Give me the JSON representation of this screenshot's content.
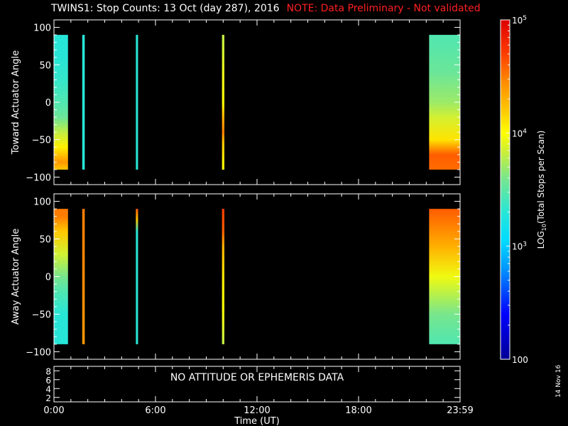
{
  "header": {
    "title": "TWINS1: Stop Counts: 13 Oct (day 287), 2016",
    "note": "NOTE: Data Preliminary - Not validated",
    "note_color": "#ff2020"
  },
  "side_date": "14 Nov 16",
  "no_data_message": "NO ATTITUDE OR EPHEMERIS DATA",
  "chart_data": [
    {
      "type": "heatmap",
      "panel": "toward",
      "ylabel": "Toward Actuator Angle",
      "ylim": [
        -110,
        110
      ],
      "yticks": [
        -100,
        -50,
        0,
        50,
        100
      ],
      "xlim_hours": [
        0,
        24
      ],
      "angle_range": [
        -90,
        90
      ],
      "segments": [
        {
          "start": "0:00",
          "end": "0:50",
          "start_h": 0.0,
          "end_h": 0.83,
          "log_profile": [
            [
              -90,
              4.2
            ],
            [
              -80,
              4.4
            ],
            [
              -60,
              4.05
            ],
            [
              -40,
              3.8
            ],
            [
              -20,
              3.55
            ],
            [
              0,
              3.45
            ],
            [
              30,
              3.35
            ],
            [
              60,
              3.3
            ],
            [
              90,
              3.3
            ]
          ]
        },
        {
          "start": "1:40",
          "end": "1:50",
          "start_h": 1.67,
          "end_h": 1.82,
          "log_profile": [
            [
              -90,
              3.3
            ],
            [
              90,
              3.3
            ]
          ]
        },
        {
          "start": "4:50",
          "end": "4:58",
          "start_h": 4.84,
          "end_h": 4.97,
          "log_profile": [
            [
              -90,
              3.3
            ],
            [
              90,
              3.3
            ]
          ]
        },
        {
          "start": "9:55",
          "end": "10:05",
          "start_h": 9.93,
          "end_h": 10.07,
          "log_profile": [
            [
              -90,
              4.0
            ],
            [
              -55,
              4.2
            ],
            [
              -40,
              4.5
            ],
            [
              -20,
              4.3
            ],
            [
              0,
              4.0
            ],
            [
              50,
              3.9
            ],
            [
              90,
              3.8
            ]
          ]
        },
        {
          "start": "22:10",
          "end": "23:59",
          "start_h": 22.17,
          "end_h": 24.0,
          "log_profile": [
            [
              -90,
              4.55
            ],
            [
              -70,
              4.6
            ],
            [
              -50,
              4.1
            ],
            [
              -20,
              3.85
            ],
            [
              0,
              3.7
            ],
            [
              40,
              3.55
            ],
            [
              90,
              3.45
            ]
          ]
        }
      ]
    },
    {
      "type": "heatmap",
      "panel": "away",
      "ylabel": "Away Actuator Angle",
      "ylim": [
        -110,
        110
      ],
      "yticks": [
        -100,
        -50,
        0,
        50,
        100
      ],
      "xlim_hours": [
        0,
        24
      ],
      "angle_range": [
        -90,
        90
      ],
      "segments": [
        {
          "start": "0:00",
          "end": "0:50",
          "start_h": 0.0,
          "end_h": 0.83,
          "log_profile": [
            [
              -90,
              3.3
            ],
            [
              -50,
              3.3
            ],
            [
              -20,
              3.45
            ],
            [
              0,
              3.6
            ],
            [
              30,
              3.85
            ],
            [
              60,
              4.2
            ],
            [
              80,
              4.5
            ],
            [
              90,
              4.5
            ]
          ]
        },
        {
          "start": "1:40",
          "end": "1:50",
          "start_h": 1.67,
          "end_h": 1.82,
          "log_profile": [
            [
              -90,
              4.4
            ],
            [
              90,
              4.5
            ]
          ]
        },
        {
          "start": "4:50",
          "end": "4:58",
          "start_h": 4.84,
          "end_h": 4.97,
          "log_profile": [
            [
              -90,
              3.3
            ],
            [
              60,
              3.3
            ],
            [
              75,
              4.2
            ],
            [
              90,
              4.6
            ]
          ]
        },
        {
          "start": "9:55",
          "end": "10:05",
          "start_h": 9.93,
          "end_h": 10.07,
          "log_profile": [
            [
              -90,
              3.8
            ],
            [
              -40,
              4.0
            ],
            [
              0,
              4.1
            ],
            [
              40,
              4.3
            ],
            [
              60,
              4.6
            ],
            [
              90,
              4.7
            ]
          ]
        },
        {
          "start": "22:10",
          "end": "23:59",
          "start_h": 22.17,
          "end_h": 24.0,
          "log_profile": [
            [
              -90,
              3.45
            ],
            [
              -50,
              3.6
            ],
            [
              0,
              3.95
            ],
            [
              40,
              4.3
            ],
            [
              70,
              4.5
            ],
            [
              80,
              4.55
            ],
            [
              90,
              4.6
            ]
          ]
        }
      ]
    },
    {
      "type": "line",
      "panel": "ephemeris",
      "ylim": [
        1,
        9
      ],
      "yticks": [
        2,
        4,
        6,
        8
      ],
      "series": []
    }
  ],
  "x_axis": {
    "xlabel": "Time (UT)",
    "ticks": [
      {
        "h": 0,
        "label": "0:00"
      },
      {
        "h": 6,
        "label": "6:00"
      },
      {
        "h": 12,
        "label": "12:00"
      },
      {
        "h": 18,
        "label": "18:00"
      },
      {
        "h": 24,
        "label": "23:59"
      }
    ]
  },
  "colorbar": {
    "label": "LOG10(Total Stops per Scan)",
    "range_log": [
      2,
      5
    ],
    "ticks": [
      {
        "log": 5,
        "label": "10^5"
      },
      {
        "log": 4,
        "label": "10^4"
      },
      {
        "log": 3,
        "label": "10^3"
      },
      {
        "log": 2,
        "label": "100"
      }
    ]
  }
}
